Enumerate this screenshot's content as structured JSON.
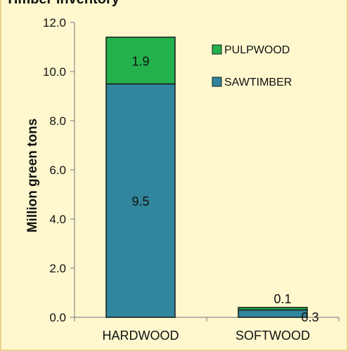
{
  "chart_data": {
    "type": "bar",
    "stacked": true,
    "title": "Timber Inventory",
    "ylabel": "Million green tons",
    "xlabel": "",
    "categories": [
      "HARDWOOD",
      "SOFTWOOD"
    ],
    "series": [
      {
        "name": "SAWTIMBER",
        "values": [
          9.5,
          0.3
        ],
        "labels": [
          "9.5",
          "0.3"
        ],
        "color": "#31859c"
      },
      {
        "name": "PULPWOOD",
        "values": [
          1.9,
          0.1
        ],
        "labels": [
          "1.9",
          "0.1"
        ],
        "color": "#22b14c"
      }
    ],
    "ylim": [
      0,
      12
    ],
    "yticks": [
      "0.0",
      "2.0",
      "4.0",
      "6.0",
      "8.0",
      "10.0",
      "12.0"
    ],
    "grid": false,
    "legend": "top-right"
  },
  "colors": {
    "background": "#fff8cf",
    "border": "#e7d48a"
  }
}
